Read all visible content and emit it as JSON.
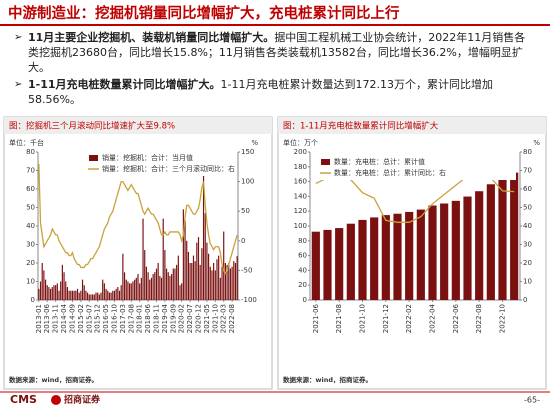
{
  "header": {
    "title": "中游制造业：挖掘机销量同比增幅扩大，充电桩累计同比上行"
  },
  "bullets": [
    {
      "lead": "11月主要企业挖掘机、装载机销量同比增幅扩大。",
      "text": "据中国工程机械工业协会统计，2022年11月销售各类挖掘机23680台，同比增长15.8%；11月销售各类装载机13582台，同比增长36.2%，增幅明显扩大。"
    },
    {
      "lead": "1-11月充电桩数量累计同比增幅扩大。",
      "text": "1-11月充电桩累计数量达到172.13万个，累计同比增加58.56%。"
    }
  ],
  "chart_data": [
    {
      "type": "combo",
      "title": "图：挖掘机三个月滚动同比增速扩大至9.8%",
      "y_unit": "单位：千台",
      "y2_unit": "%",
      "source": "数据来源：wind，招商证券。",
      "categories": [
        "2013-01",
        null,
        null,
        null,
        null,
        "2013-06",
        null,
        null,
        null,
        null,
        "2013-11",
        null,
        null,
        null,
        null,
        "2014-04",
        null,
        null,
        null,
        null,
        "2014-09",
        null,
        null,
        null,
        null,
        "2015-02",
        null,
        null,
        null,
        null,
        "2015-07",
        null,
        null,
        null,
        null,
        "2015-12",
        null,
        null,
        null,
        null,
        "2016-05",
        null,
        null,
        null,
        null,
        "2016-10",
        null,
        null,
        null,
        null,
        "2017-03",
        null,
        null,
        null,
        null,
        "2017-08",
        null,
        null,
        null,
        null,
        "2018-01",
        null,
        null,
        null,
        null,
        "2018-06",
        null,
        null,
        null,
        null,
        "2018-11",
        null,
        null,
        null,
        null,
        "2019-04",
        null,
        null,
        null,
        null,
        "2019-09",
        null,
        null,
        null,
        null,
        "2020-02",
        null,
        null,
        null,
        null,
        "2020-07",
        null,
        null,
        null,
        null,
        "2020-12",
        null,
        null,
        null,
        null,
        "2021-05",
        null,
        null,
        null,
        null,
        "2021-10",
        null,
        null,
        null,
        null,
        "2022-03",
        null,
        null,
        null,
        null,
        "2022-08",
        null,
        null,
        null
      ],
      "series": [
        {
          "name": "销量：挖掘机：合计：当月值",
          "kind": "bar",
          "color": "#7b1010",
          "values": [
            6,
            10,
            20,
            16,
            11,
            8,
            7,
            6,
            7,
            8,
            8,
            9,
            5,
            10,
            19,
            15,
            10,
            7,
            5,
            5,
            5,
            5,
            5,
            6,
            4,
            5,
            11,
            8,
            5,
            4,
            3,
            3,
            3,
            3,
            4,
            4,
            3,
            4,
            11,
            9,
            6,
            5,
            4,
            4,
            5,
            5,
            6,
            7,
            5,
            8,
            25,
            15,
            11,
            10,
            9,
            9,
            10,
            11,
            12,
            14,
            9,
            12,
            44,
            27,
            18,
            15,
            11,
            12,
            14,
            15,
            17,
            20,
            13,
            12,
            44,
            27,
            17,
            15,
            13,
            14,
            17,
            17,
            19,
            24,
            8,
            9,
            49,
            43,
            32,
            26,
            20,
            20,
            24,
            21,
            31,
            34,
            19,
            28,
            79.6,
            47,
            31,
            25,
            18,
            16,
            20,
            16,
            22,
            24,
            12,
            18,
            37,
            20,
            19,
            20,
            17,
            18,
            21,
            20,
            23.68
          ]
        },
        {
          "name": "销量：挖掘机：合计：三个月滚动同比：右",
          "kind": "line",
          "axis": "y2",
          "color": "#c9a23c",
          "values": [
            130,
            30,
            10,
            -10,
            -5,
            0,
            5,
            10,
            20,
            15,
            10,
            10,
            0,
            -5,
            -10,
            -15,
            -20,
            -20,
            -25,
            -25,
            -20,
            -30,
            -35,
            -40,
            -40,
            -45,
            -45,
            -45,
            -40,
            -40,
            -35,
            -30,
            -30,
            -25,
            -20,
            -15,
            -10,
            0,
            10,
            20,
            25,
            30,
            40,
            45,
            50,
            60,
            70,
            80,
            90,
            100,
            100,
            95,
            90,
            85,
            90,
            95,
            90,
            85,
            80,
            80,
            70,
            60,
            50,
            45,
            50,
            55,
            50,
            45,
            45,
            40,
            35,
            30,
            20,
            10,
            10,
            15,
            10,
            10,
            15,
            15,
            15,
            15,
            15,
            15,
            10,
            0,
            10,
            40,
            60,
            60,
            55,
            50,
            45,
            45,
            50,
            55,
            70,
            90,
            100,
            60,
            30,
            10,
            -5,
            -10,
            -15,
            -10,
            -10,
            -10,
            -20,
            -40,
            -50,
            -55,
            -50,
            -40,
            -30,
            -20,
            -10,
            0,
            9.8
          ]
        }
      ],
      "ylim": [
        0,
        80
      ],
      "yticks": [
        0,
        10,
        20,
        30,
        40,
        50,
        60,
        70,
        80
      ],
      "y2lim": [
        -100,
        150
      ],
      "y2ticks": [
        -100,
        -50,
        0,
        50,
        100,
        150
      ],
      "grid": false,
      "legend": "top"
    },
    {
      "type": "combo",
      "title": "图：1-11月充电桩数量累计同比增幅扩大",
      "y_unit": "单位：万个",
      "y2_unit": "%",
      "source": "数据来源：wind，招商证券。",
      "categories": [
        "2021-06",
        null,
        "2021-08",
        null,
        "2021-10",
        null,
        "2021-12",
        null,
        "2022-02",
        null,
        "2022-04",
        null,
        "2022-06",
        null,
        "2022-08",
        null,
        "2022-10",
        null
      ],
      "series": [
        {
          "name": "数量：充电桩：总计：累计值",
          "kind": "bar",
          "color": "#7b1010",
          "values": [
            92.3,
            94.7,
            97.2,
            103.1,
            108.2,
            111.6,
            114.7,
            116.6,
            119.0,
            122.2,
            127.7,
            130.4,
            134.0,
            139.8,
            147.0,
            156.4,
            164.0,
            172.13
          ]
        },
        {
          "name": "数量：充电桩：总计：累计同比：右",
          "kind": "line",
          "axis": "y2",
          "color": "#c9a23c",
          "values": [
            63,
            66,
            67,
            65,
            58,
            55,
            43,
            42,
            42,
            45,
            52,
            57,
            62,
            67,
            68,
            66,
            59,
            58.56
          ]
        }
      ],
      "ylim": [
        0,
        200
      ],
      "yticks": [
        0,
        20,
        40,
        60,
        80,
        100,
        120,
        140,
        160,
        180,
        200
      ],
      "y2lim": [
        0,
        80
      ],
      "y2ticks": [
        0,
        10,
        20,
        30,
        40,
        50,
        60,
        70,
        80
      ],
      "grid": false,
      "legend": "top-left"
    }
  ],
  "footer": {
    "logo_en": "CMS",
    "logo_cn": "招商证券",
    "page": "-65-"
  }
}
